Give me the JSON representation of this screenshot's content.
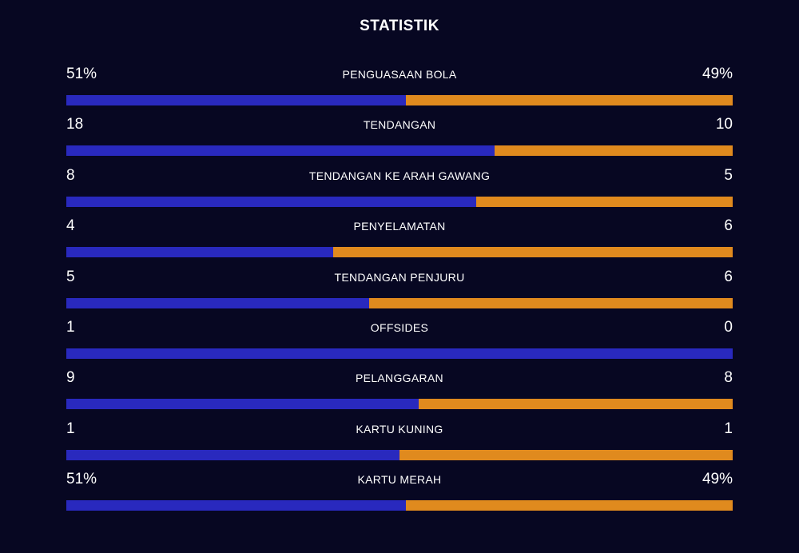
{
  "title": "STATISTIK",
  "colors": {
    "background": "#070722",
    "home": "#2929be",
    "away": "#e08a1e"
  },
  "stats": [
    {
      "label": "PENGUASAAN BOLA",
      "home": "51%",
      "away": "49%",
      "home_share": 0.51
    },
    {
      "label": "TENDANGAN",
      "home": "18",
      "away": "10",
      "home_share": 0.643
    },
    {
      "label": "TENDANGAN KE ARAH GAWANG",
      "home": "8",
      "away": "5",
      "home_share": 0.615
    },
    {
      "label": "PENYELAMATAN",
      "home": "4",
      "away": "6",
      "home_share": 0.4
    },
    {
      "label": "TENDANGAN PENJURU",
      "home": "5",
      "away": "6",
      "home_share": 0.455
    },
    {
      "label": "OFFSIDES",
      "home": "1",
      "away": "0",
      "home_share": 1.0
    },
    {
      "label": "PELANGGARAN",
      "home": "9",
      "away": "8",
      "home_share": 0.529
    },
    {
      "label": "KARTU KUNING",
      "home": "1",
      "away": "1",
      "home_share": 0.5
    },
    {
      "label": "KARTU MERAH",
      "home": "51%",
      "away": "49%",
      "home_share": 0.51
    }
  ]
}
